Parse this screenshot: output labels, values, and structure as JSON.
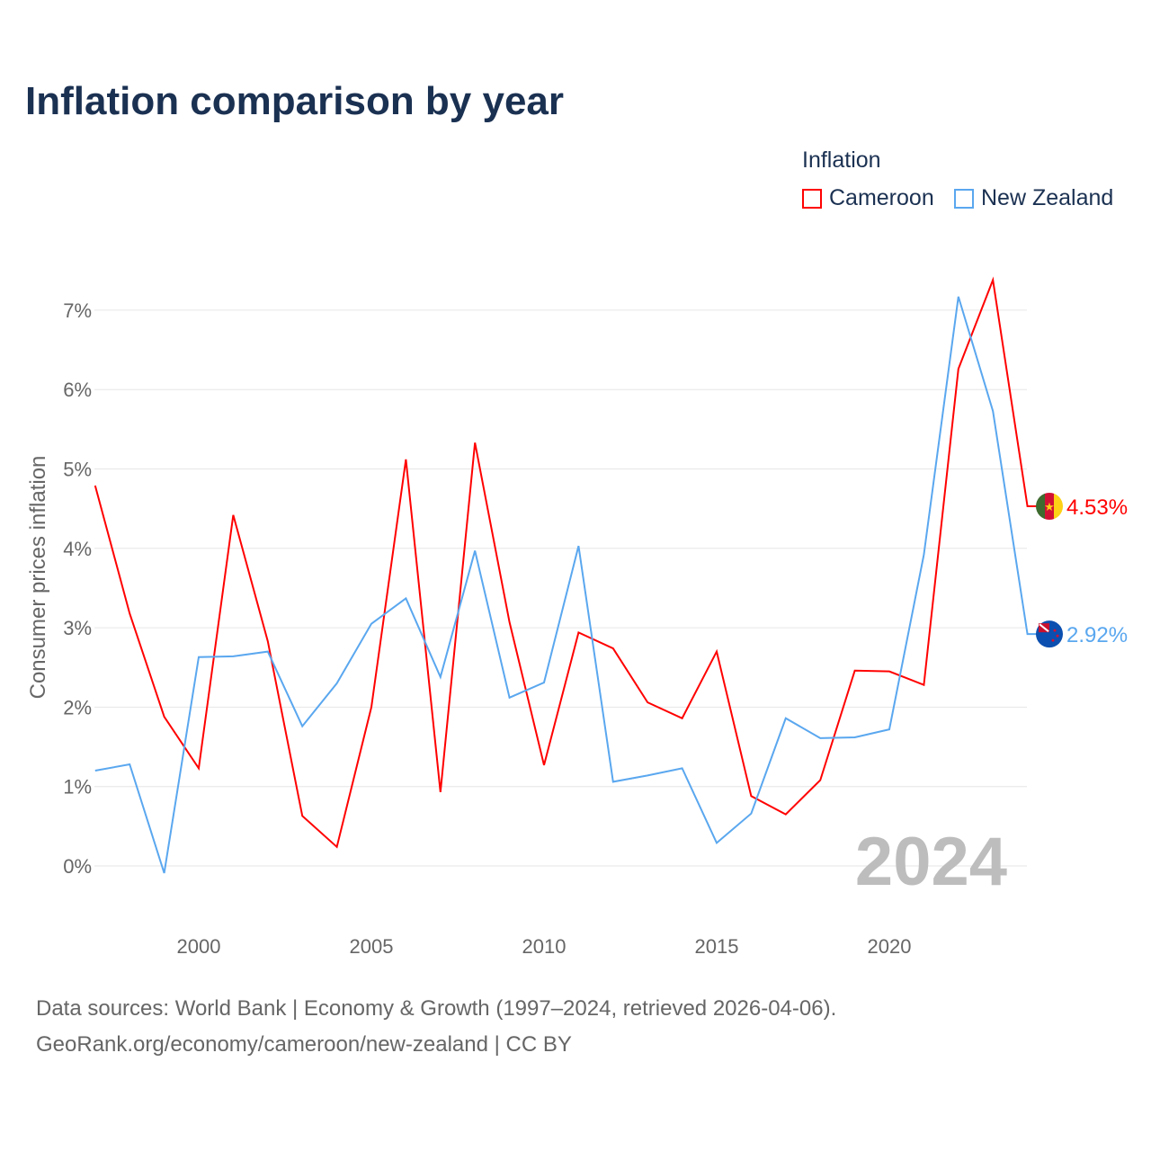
{
  "chart_data": {
    "type": "line",
    "title": "Inflation comparison by year",
    "legend_title": "Inflation",
    "legend_placement": "top-right",
    "ylabel": "Consumer prices inflation",
    "xlabel": "",
    "ylim": [
      -0.5,
      7.5
    ],
    "xlim": [
      1997,
      2024
    ],
    "yticks": [
      0,
      1,
      2,
      3,
      4,
      5,
      6,
      7
    ],
    "ytick_labels": [
      "0%",
      "1%",
      "2%",
      "3%",
      "4%",
      "5%",
      "6%",
      "7%"
    ],
    "xticks": [
      2000,
      2005,
      2010,
      2015,
      2020
    ],
    "xtick_labels": [
      "2000",
      "2005",
      "2010",
      "2015",
      "2020"
    ],
    "grid": true,
    "year_watermark": "2024",
    "x": [
      1997,
      1998,
      1999,
      2000,
      2001,
      2002,
      2003,
      2004,
      2005,
      2006,
      2007,
      2008,
      2009,
      2010,
      2011,
      2012,
      2013,
      2014,
      2015,
      2016,
      2017,
      2018,
      2019,
      2020,
      2021,
      2022,
      2023,
      2024
    ],
    "series": [
      {
        "name": "Cameroon",
        "color": "#ff0000",
        "end_label": "4.53%",
        "values": [
          4.79,
          3.18,
          1.88,
          1.23,
          4.42,
          2.83,
          0.63,
          0.24,
          2.0,
          5.12,
          0.93,
          5.33,
          3.07,
          1.27,
          2.94,
          2.74,
          2.06,
          1.86,
          2.7,
          0.88,
          0.65,
          1.08,
          2.46,
          2.45,
          2.28,
          6.26,
          7.38,
          4.53
        ]
      },
      {
        "name": "New Zealand",
        "color": "#5aa7ef",
        "end_label": "2.92%",
        "values": [
          1.2,
          1.28,
          -0.09,
          2.63,
          2.64,
          2.7,
          1.76,
          2.3,
          3.05,
          3.37,
          2.38,
          3.97,
          2.12,
          2.31,
          4.03,
          1.06,
          1.14,
          1.23,
          0.29,
          0.66,
          1.86,
          1.61,
          1.62,
          1.72,
          3.92,
          7.17,
          5.73,
          2.92
        ]
      }
    ]
  },
  "footer": {
    "line1": "Data sources: World Bank | Economy & Growth (1997–2024, retrieved 2026-04-06).",
    "line2": "GeoRank.org/economy/cameroon/new-zealand | CC BY"
  }
}
